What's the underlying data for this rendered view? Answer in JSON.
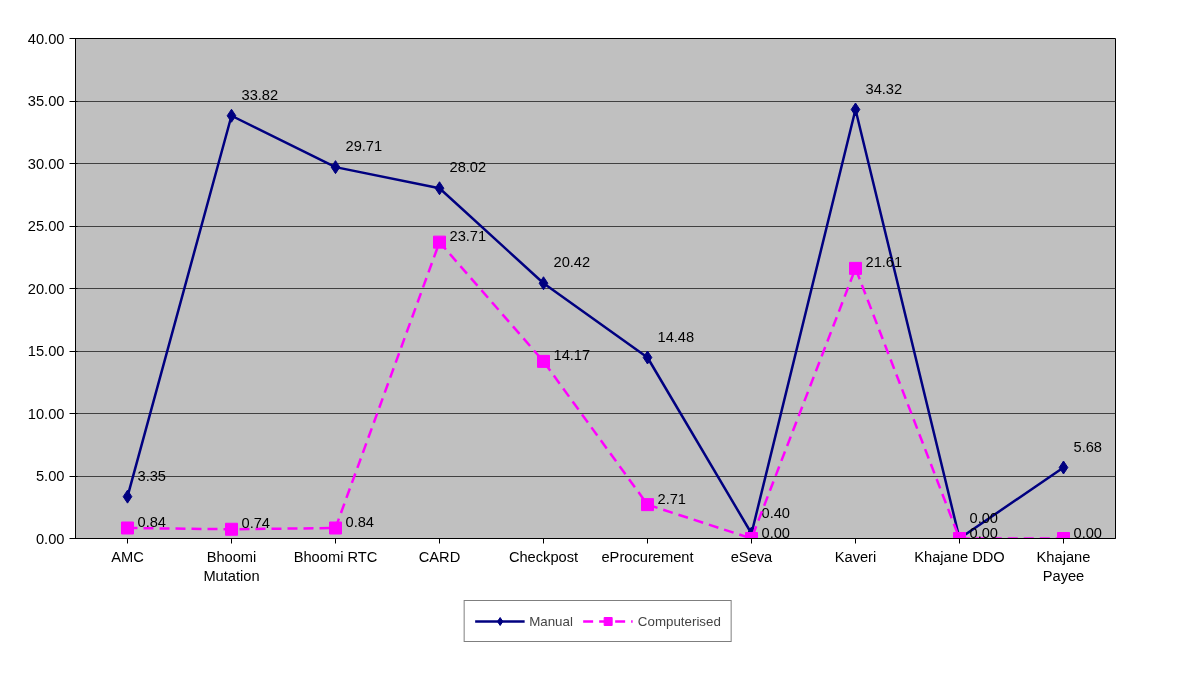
{
  "chart_data": {
    "type": "line",
    "categories": [
      "AMC",
      "Bhoomi Mutation",
      "Bhoomi RTC",
      "CARD",
      "Checkpost",
      "eProcurement",
      "eSeva",
      "Kaveri",
      "Khajane DDO",
      "Khajane Payee"
    ],
    "series": [
      {
        "name": "Manual",
        "color": "#000080",
        "marker": "diamond",
        "line_style": "solid",
        "values": [
          3.35,
          33.82,
          29.71,
          28.02,
          20.42,
          14.48,
          0.4,
          34.32,
          0.0,
          5.68
        ],
        "value_labels": [
          "3.35",
          "33.82",
          "29.71",
          "28.02",
          "20.42",
          "14.48",
          "0.40",
          "34.32",
          "0.00",
          "5.68"
        ]
      },
      {
        "name": "Computerised",
        "color": "#ff00ff",
        "marker": "square",
        "line_style": "dashed",
        "values": [
          0.84,
          0.74,
          0.84,
          23.71,
          14.17,
          2.71,
          0.0,
          21.61,
          0.0,
          0.0
        ],
        "value_labels": [
          "0.84",
          "0.74",
          "0.84",
          "23.71",
          "14.17",
          "2.71",
          "0.00",
          "21.61",
          "0.00",
          "0.00"
        ]
      }
    ],
    "ylim": [
      0,
      40
    ],
    "yticks": [
      {
        "value": 0,
        "label": "0.00"
      },
      {
        "value": 5,
        "label": "5.00"
      },
      {
        "value": 10,
        "label": "10.00"
      },
      {
        "value": 15,
        "label": "15.00"
      },
      {
        "value": 20,
        "label": "20.00"
      },
      {
        "value": 25,
        "label": "25.00"
      },
      {
        "value": 30,
        "label": "30.00"
      },
      {
        "value": 35,
        "label": "35.00"
      },
      {
        "value": 40,
        "label": "40.00"
      }
    ],
    "grid": "y",
    "legend": "bottom"
  }
}
